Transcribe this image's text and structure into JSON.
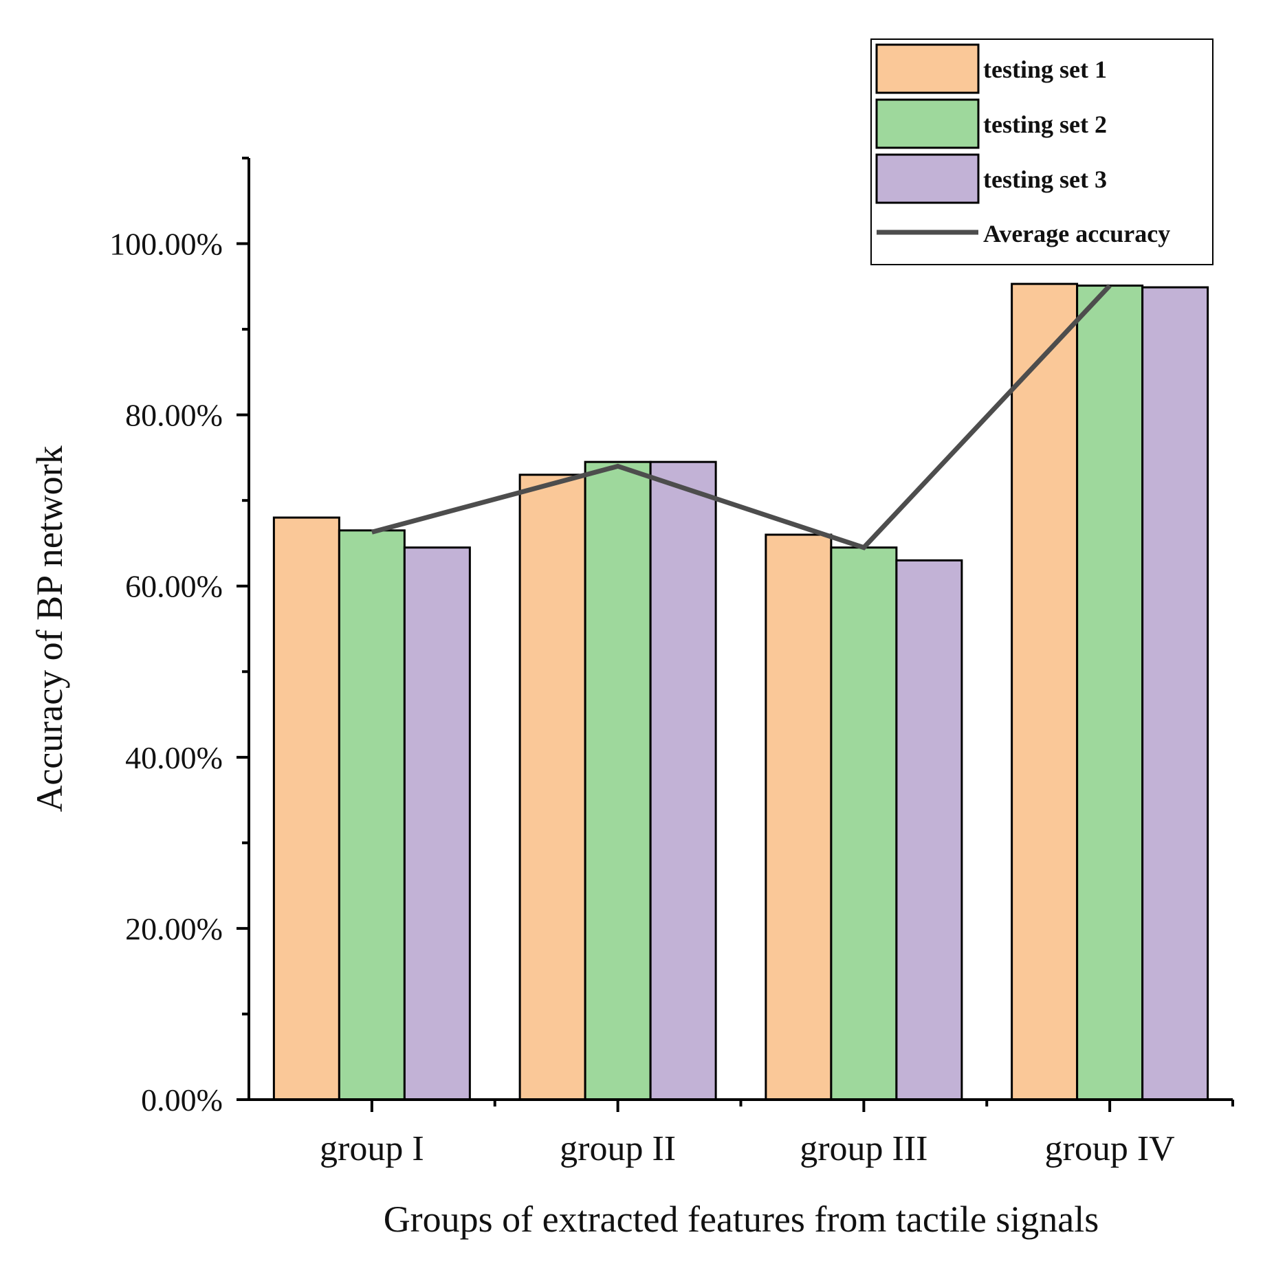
{
  "chart_data": {
    "type": "bar",
    "title": "",
    "xlabel": "Groups of extracted features from tactile signals",
    "ylabel": "Accuracy of BP network",
    "categories": [
      "group I",
      "group II",
      "group III",
      "group IV"
    ],
    "series": [
      {
        "name": "testing set 1",
        "color": "#fac898",
        "values": [
          68.0,
          73.0,
          66.0,
          95.3
        ]
      },
      {
        "name": "testing set 2",
        "color": "#9ed89c",
        "values": [
          66.5,
          74.5,
          64.5,
          95.1
        ]
      },
      {
        "name": "testing set 3",
        "color": "#c2b2d6",
        "values": [
          64.5,
          74.5,
          63.0,
          94.9
        ]
      }
    ],
    "line_series": {
      "name": "Average accuracy",
      "color": "#4d4d4d",
      "values": [
        66.3,
        74.0,
        64.5,
        95.1
      ]
    },
    "ylim": [
      0,
      110
    ],
    "yticks": [
      0,
      20,
      40,
      60,
      80,
      100
    ],
    "ytick_labels": [
      "0.00%",
      "20.00%",
      "40.00%",
      "60.00%",
      "80.00%",
      "100.00%"
    ],
    "grid": false,
    "legend_position": "top-right"
  }
}
